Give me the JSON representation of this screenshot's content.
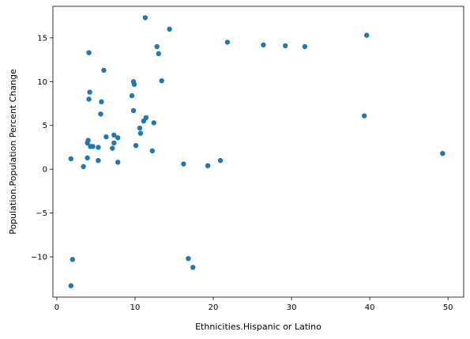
{
  "chart_data": {
    "type": "scatter",
    "xlabel": "Ethnicities.Hispanic or Latino",
    "ylabel": "Population.Population Percent Change",
    "xlim": [
      -0.5,
      52
    ],
    "ylim": [
      -14.6,
      18.6
    ],
    "xticks": [
      0,
      10,
      20,
      30,
      40,
      50
    ],
    "yticks": [
      -10,
      -5,
      0,
      5,
      10,
      15
    ],
    "grid": false,
    "point_color": "#1f77b4",
    "points": [
      {
        "x": 1.8,
        "y": -13.3
      },
      {
        "x": 2.0,
        "y": -10.3
      },
      {
        "x": 1.8,
        "y": 1.2
      },
      {
        "x": 3.4,
        "y": 0.3
      },
      {
        "x": 3.9,
        "y": 1.3
      },
      {
        "x": 3.9,
        "y": 3.0
      },
      {
        "x": 4.0,
        "y": 3.3
      },
      {
        "x": 4.3,
        "y": 2.6
      },
      {
        "x": 4.6,
        "y": 2.6
      },
      {
        "x": 5.3,
        "y": 1.0
      },
      {
        "x": 5.3,
        "y": 2.5
      },
      {
        "x": 5.6,
        "y": 6.3
      },
      {
        "x": 5.7,
        "y": 7.7
      },
      {
        "x": 4.1,
        "y": 8.0
      },
      {
        "x": 4.2,
        "y": 8.8
      },
      {
        "x": 4.1,
        "y": 13.3
      },
      {
        "x": 6.0,
        "y": 11.3
      },
      {
        "x": 6.3,
        "y": 3.7
      },
      {
        "x": 7.1,
        "y": 2.4
      },
      {
        "x": 7.3,
        "y": 3.0
      },
      {
        "x": 7.3,
        "y": 3.9
      },
      {
        "x": 7.8,
        "y": 3.6
      },
      {
        "x": 7.8,
        "y": 0.8
      },
      {
        "x": 9.6,
        "y": 8.4
      },
      {
        "x": 9.8,
        "y": 6.7
      },
      {
        "x": 9.8,
        "y": 10.0
      },
      {
        "x": 9.9,
        "y": 9.7
      },
      {
        "x": 10.1,
        "y": 2.7
      },
      {
        "x": 10.6,
        "y": 4.7
      },
      {
        "x": 10.7,
        "y": 4.1
      },
      {
        "x": 11.1,
        "y": 5.5
      },
      {
        "x": 11.4,
        "y": 5.9
      },
      {
        "x": 11.3,
        "y": 17.3
      },
      {
        "x": 12.2,
        "y": 2.1
      },
      {
        "x": 12.4,
        "y": 5.3
      },
      {
        "x": 12.8,
        "y": 14.0
      },
      {
        "x": 13.0,
        "y": 13.2
      },
      {
        "x": 13.4,
        "y": 10.1
      },
      {
        "x": 14.4,
        "y": 16.0
      },
      {
        "x": 16.2,
        "y": 0.6
      },
      {
        "x": 16.8,
        "y": -10.2
      },
      {
        "x": 17.4,
        "y": -11.2
      },
      {
        "x": 19.3,
        "y": 0.4
      },
      {
        "x": 20.9,
        "y": 1.0
      },
      {
        "x": 21.8,
        "y": 14.5
      },
      {
        "x": 26.4,
        "y": 14.2
      },
      {
        "x": 29.2,
        "y": 14.1
      },
      {
        "x": 31.7,
        "y": 14.0
      },
      {
        "x": 39.3,
        "y": 6.1
      },
      {
        "x": 39.6,
        "y": 15.3
      },
      {
        "x": 49.3,
        "y": 1.8
      }
    ]
  }
}
